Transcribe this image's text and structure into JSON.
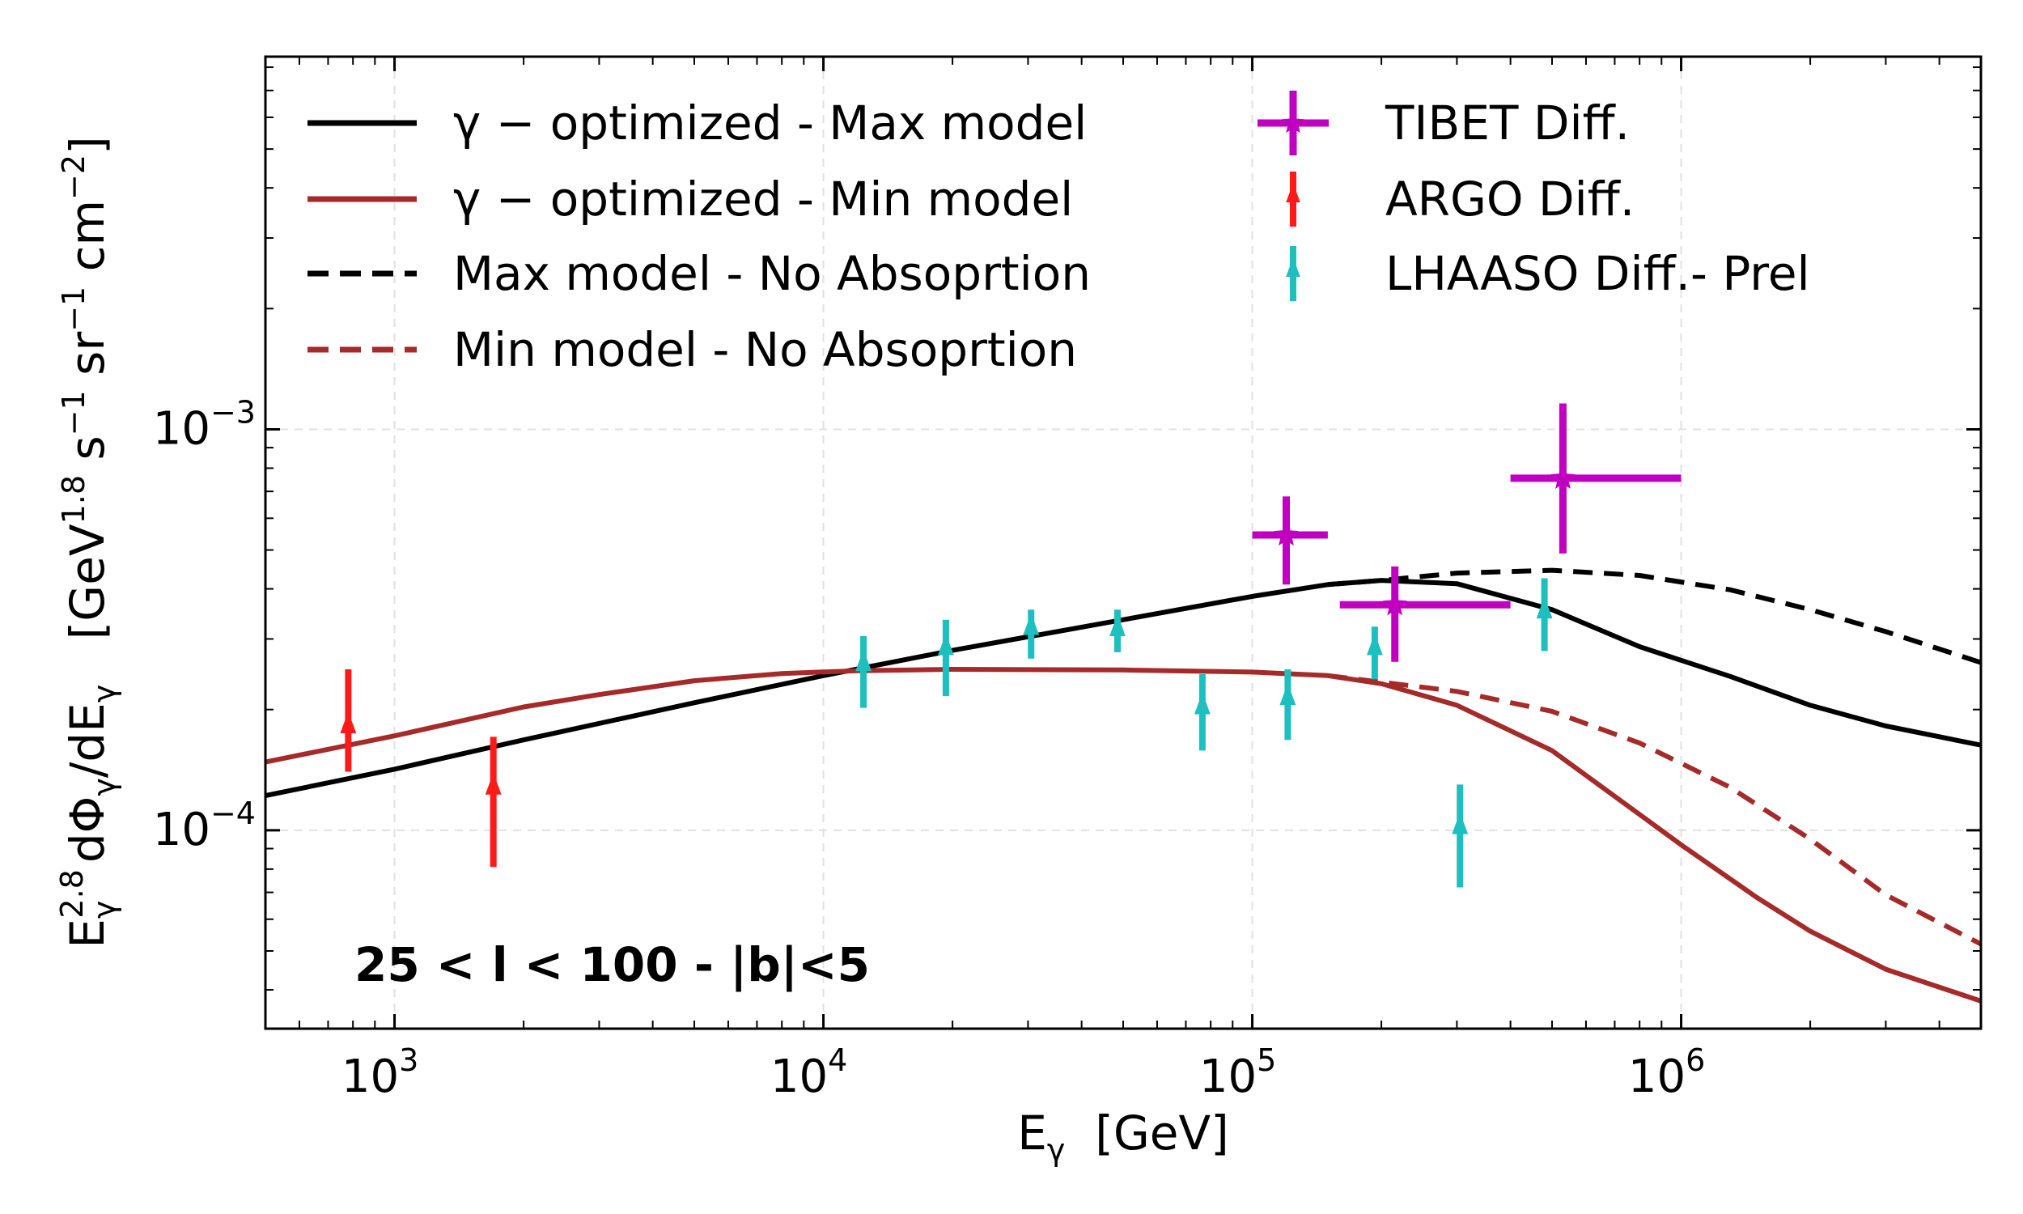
{
  "chart_data": {
    "type": "line",
    "x_scale": "log",
    "y_scale": "log",
    "xlim": [
      500,
      5000000
    ],
    "ylim": [
      3.2e-05,
      0.0085
    ],
    "grid": true,
    "legend_placement": "top-left",
    "xlabel": "E_γ [GeV]",
    "ylabel": "E_γ^2.8 dΦ_γ/dE_γ [GeV^1.8 s^-1 sr^-1 cm^-2]",
    "x_ticks": [
      {
        "value": 1000,
        "base": "10",
        "exp": "3"
      },
      {
        "value": 10000,
        "base": "10",
        "exp": "4"
      },
      {
        "value": 100000,
        "base": "10",
        "exp": "5"
      },
      {
        "value": 1000000,
        "base": "10",
        "exp": "6"
      }
    ],
    "y_ticks": [
      {
        "value": 0.0001,
        "base": "10",
        "exp": "−4"
      },
      {
        "value": 0.001,
        "base": "10",
        "exp": "−3"
      }
    ],
    "annotation": "25 < l < 100 - |b|<5",
    "series": [
      {
        "name": "γ − optimized - Max model",
        "color": "#000000",
        "style": "solid",
        "x": [
          500,
          1000,
          2000,
          5000,
          10000,
          20000,
          50000,
          100000,
          150000,
          200000,
          300000,
          500000,
          800000,
          1300000,
          2000000,
          3000000,
          5000000
        ],
        "y": [
          0.000122,
          0.000142,
          0.000168,
          0.000208,
          0.000243,
          0.000281,
          0.000335,
          0.000383,
          0.00041,
          0.00042,
          0.000412,
          0.000355,
          0.000287,
          0.000242,
          0.000205,
          0.000182,
          0.000163
        ]
      },
      {
        "name": "γ − optimized - Min model",
        "color": "#a52a2a",
        "style": "solid",
        "x": [
          500,
          1000,
          2000,
          3000,
          5000,
          8000,
          12000,
          20000,
          50000,
          100000,
          150000,
          200000,
          300000,
          500000,
          1000000,
          1500000,
          2000000,
          3000000,
          5000000
        ],
        "y": [
          0.000148,
          0.000172,
          0.000203,
          0.000218,
          0.000236,
          0.000246,
          0.00025,
          0.000252,
          0.000251,
          0.000248,
          0.000243,
          0.000232,
          0.000205,
          0.000158,
          9.2e-05,
          6.8e-05,
          5.6e-05,
          4.5e-05,
          3.75e-05
        ]
      },
      {
        "name": "Max model - No Absoprtion",
        "color": "#000000",
        "style": "dashed",
        "x": [
          150000,
          200000,
          300000,
          500000,
          800000,
          1300000,
          2000000,
          3000000,
          5000000
        ],
        "y": [
          0.00041,
          0.00042,
          0.000438,
          0.000445,
          0.000432,
          0.000398,
          0.000355,
          0.000313,
          0.000262
        ]
      },
      {
        "name": "Min model - No Absoprtion",
        "color": "#a52a2a",
        "style": "dashed",
        "x": [
          150000,
          200000,
          300000,
          500000,
          800000,
          1300000,
          2000000,
          3000000,
          5000000
        ],
        "y": [
          0.000243,
          0.000234,
          0.000222,
          0.000198,
          0.000165,
          0.000128,
          9.5e-05,
          6.9e-05,
          5.2e-05
        ]
      },
      {
        "name": "TIBET Diff.",
        "color": "#c000c0",
        "marker": "star",
        "points": [
          {
            "x": 120000,
            "y": 0.000545,
            "x_lo": 100000,
            "x_hi": 150000,
            "y_lo": 0.00041,
            "y_hi": 0.00068
          },
          {
            "x": 215000,
            "y": 0.000365,
            "x_lo": 160000,
            "x_hi": 400000,
            "y_lo": 0.000263,
            "y_hi": 0.000455
          },
          {
            "x": 530000,
            "y": 0.000755,
            "x_lo": 400000,
            "x_hi": 1000000,
            "y_lo": 0.00049,
            "y_hi": 0.00116
          }
        ]
      },
      {
        "name": "ARGO Diff.",
        "color": "#ff1a1a",
        "marker": "triangle",
        "points": [
          {
            "x": 780,
            "y": 0.000182,
            "y_lo": 0.00014,
            "y_hi": 0.000252
          },
          {
            "x": 1700,
            "y": 0.000128,
            "y_lo": 8.1e-05,
            "y_hi": 0.000171
          }
        ]
      },
      {
        "name": "LHAASO Diff.- Prel",
        "color": "#1ebfbf",
        "marker": "triangle",
        "points": [
          {
            "x": 12400,
            "y": 0.00026,
            "y_lo": 0.000202,
            "y_hi": 0.000305
          },
          {
            "x": 19300,
            "y": 0.000285,
            "y_lo": 0.000216,
            "y_hi": 0.000335
          },
          {
            "x": 30500,
            "y": 0.00032,
            "y_lo": 0.000268,
            "y_hi": 0.000355
          },
          {
            "x": 48500,
            "y": 0.000318,
            "y_lo": 0.000278,
            "y_hi": 0.000355
          },
          {
            "x": 76500,
            "y": 0.000203,
            "y_lo": 0.000158,
            "y_hi": 0.000245
          },
          {
            "x": 121000,
            "y": 0.000214,
            "y_lo": 0.000168,
            "y_hi": 0.000252
          },
          {
            "x": 193000,
            "y": 0.000285,
            "y_lo": 0.000238,
            "y_hi": 0.000322
          },
          {
            "x": 305000,
            "y": 0.000102,
            "y_lo": 7.2e-05,
            "y_hi": 0.00013
          },
          {
            "x": 480000,
            "y": 0.000352,
            "y_lo": 0.00028,
            "y_hi": 0.000425
          }
        ]
      }
    ]
  }
}
